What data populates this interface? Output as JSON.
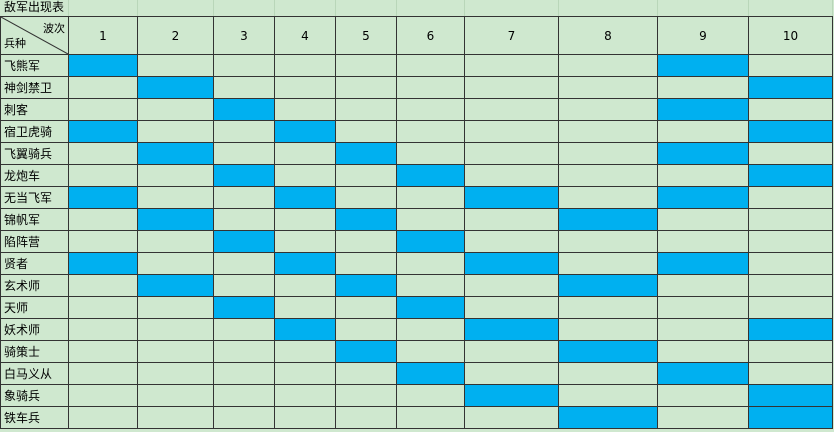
{
  "title": "敌军出现表",
  "corner": {
    "top": "波次",
    "bottom": "兵种"
  },
  "waves": [
    1,
    2,
    3,
    4,
    5,
    6,
    7,
    8,
    9,
    10
  ],
  "rows": [
    {
      "name": "飞熊军",
      "appears": [
        true,
        false,
        false,
        false,
        false,
        false,
        false,
        false,
        true,
        false
      ]
    },
    {
      "name": "神剑禁卫",
      "appears": [
        false,
        true,
        false,
        false,
        false,
        false,
        false,
        false,
        false,
        true
      ]
    },
    {
      "name": "刺客",
      "appears": [
        false,
        false,
        true,
        false,
        false,
        false,
        false,
        false,
        true,
        false
      ]
    },
    {
      "name": "宿卫虎骑",
      "appears": [
        true,
        false,
        false,
        true,
        false,
        false,
        false,
        false,
        false,
        true
      ]
    },
    {
      "name": "飞翼骑兵",
      "appears": [
        false,
        true,
        false,
        false,
        true,
        false,
        false,
        false,
        true,
        false
      ]
    },
    {
      "name": "龙炮车",
      "appears": [
        false,
        false,
        true,
        false,
        false,
        true,
        false,
        false,
        false,
        true
      ]
    },
    {
      "name": "无当飞军",
      "appears": [
        true,
        false,
        false,
        true,
        false,
        false,
        true,
        false,
        true,
        false
      ]
    },
    {
      "name": "锦帆军",
      "appears": [
        false,
        true,
        false,
        false,
        true,
        false,
        false,
        true,
        false,
        false
      ]
    },
    {
      "name": "陷阵营",
      "appears": [
        false,
        false,
        true,
        false,
        false,
        true,
        false,
        false,
        false,
        false
      ]
    },
    {
      "name": "贤者",
      "appears": [
        true,
        false,
        false,
        true,
        false,
        false,
        true,
        false,
        true,
        false
      ]
    },
    {
      "name": "玄术师",
      "appears": [
        false,
        true,
        false,
        false,
        true,
        false,
        false,
        true,
        false,
        false
      ]
    },
    {
      "name": "天师",
      "appears": [
        false,
        false,
        true,
        false,
        false,
        true,
        false,
        false,
        false,
        false
      ]
    },
    {
      "name": "妖术师",
      "appears": [
        false,
        false,
        false,
        true,
        false,
        false,
        true,
        false,
        false,
        true
      ]
    },
    {
      "name": "骑策士",
      "appears": [
        false,
        false,
        false,
        false,
        true,
        false,
        false,
        true,
        false,
        false
      ]
    },
    {
      "name": "白马义从",
      "appears": [
        false,
        false,
        false,
        false,
        false,
        true,
        false,
        false,
        true,
        false
      ]
    },
    {
      "name": "象骑兵",
      "appears": [
        false,
        false,
        false,
        false,
        false,
        false,
        true,
        false,
        false,
        true
      ]
    },
    {
      "name": "铁车兵",
      "appears": [
        false,
        false,
        false,
        false,
        false,
        false,
        false,
        true,
        false,
        true
      ]
    }
  ],
  "highlight_color": "#00b0f0"
}
